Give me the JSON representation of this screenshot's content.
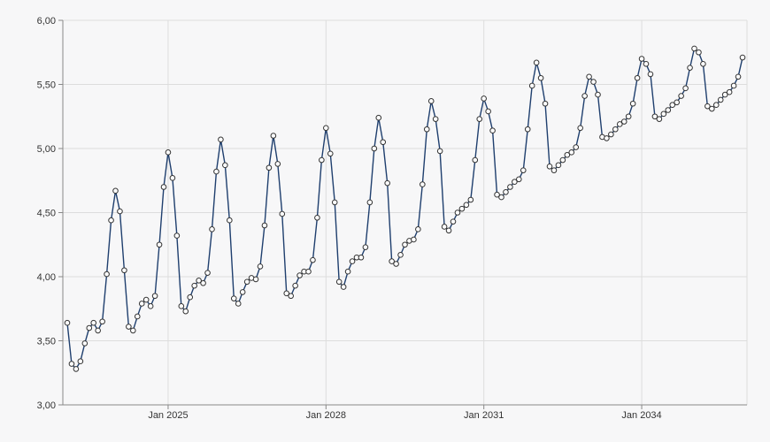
{
  "chart_data": {
    "type": "line",
    "title": "",
    "xlabel": "",
    "ylabel": "",
    "x_start": "2023-02",
    "x_frequency": "monthly",
    "ylim": [
      3.0,
      6.0
    ],
    "y_ticks": [
      "3,00",
      "3,50",
      "4,00",
      "4,50",
      "5,00",
      "5,50",
      "6,00"
    ],
    "x_ticks": [
      {
        "label": "Jan 2025",
        "date": "2025-01"
      },
      {
        "label": "Jan 2028",
        "date": "2028-01"
      },
      {
        "label": "Jan 2031",
        "date": "2031-01"
      },
      {
        "label": "Jan 2034",
        "date": "2034-01"
      }
    ],
    "grid": true,
    "legend": "none",
    "colors": {
      "line": "#1f3f6e",
      "marker_fill": "#ffffff",
      "marker_stroke": "#333333"
    },
    "series": [
      {
        "values": [
          3.64,
          3.32,
          3.28,
          3.34,
          3.48,
          3.6,
          3.64,
          3.58,
          3.65,
          4.02,
          4.44,
          4.67,
          4.51,
          4.05,
          3.61,
          3.58,
          3.69,
          3.79,
          3.82,
          3.77,
          3.85,
          4.25,
          4.7,
          4.97,
          4.77,
          4.32,
          3.77,
          3.73,
          3.84,
          3.93,
          3.97,
          3.95,
          4.03,
          4.37,
          4.82,
          5.07,
          4.87,
          4.44,
          3.83,
          3.79,
          3.88,
          3.96,
          3.99,
          3.98,
          4.08,
          4.4,
          4.85,
          5.1,
          4.88,
          4.49,
          3.87,
          3.85,
          3.93,
          4.01,
          4.04,
          4.04,
          4.13,
          4.46,
          4.91,
          5.16,
          4.96,
          4.58,
          3.96,
          3.92,
          4.04,
          4.12,
          4.15,
          4.15,
          4.23,
          4.58,
          5.0,
          5.24,
          5.05,
          4.73,
          4.12,
          4.1,
          4.17,
          4.25,
          4.28,
          4.29,
          4.37,
          4.72,
          5.15,
          5.37,
          5.23,
          4.98,
          4.39,
          4.36,
          4.43,
          4.5,
          4.53,
          4.56,
          4.6,
          4.91,
          5.23,
          5.39,
          5.29,
          5.14,
          4.64,
          4.62,
          4.66,
          4.7,
          4.74,
          4.76,
          4.83,
          5.15,
          5.49,
          5.67,
          5.55,
          5.35,
          4.86,
          4.83,
          4.87,
          4.91,
          4.95,
          4.97,
          5.01,
          5.16,
          5.41,
          5.56,
          5.52,
          5.42,
          5.09,
          5.08,
          5.11,
          5.15,
          5.19,
          5.21,
          5.25,
          5.35,
          5.55,
          5.7,
          5.66,
          5.58,
          5.25,
          5.23,
          5.27,
          5.3,
          5.34,
          5.36,
          5.41,
          5.47,
          5.63,
          5.78,
          5.75,
          5.66,
          5.33,
          5.31,
          5.34,
          5.38,
          5.42,
          5.44,
          5.49,
          5.56,
          5.71
        ]
      }
    ]
  }
}
